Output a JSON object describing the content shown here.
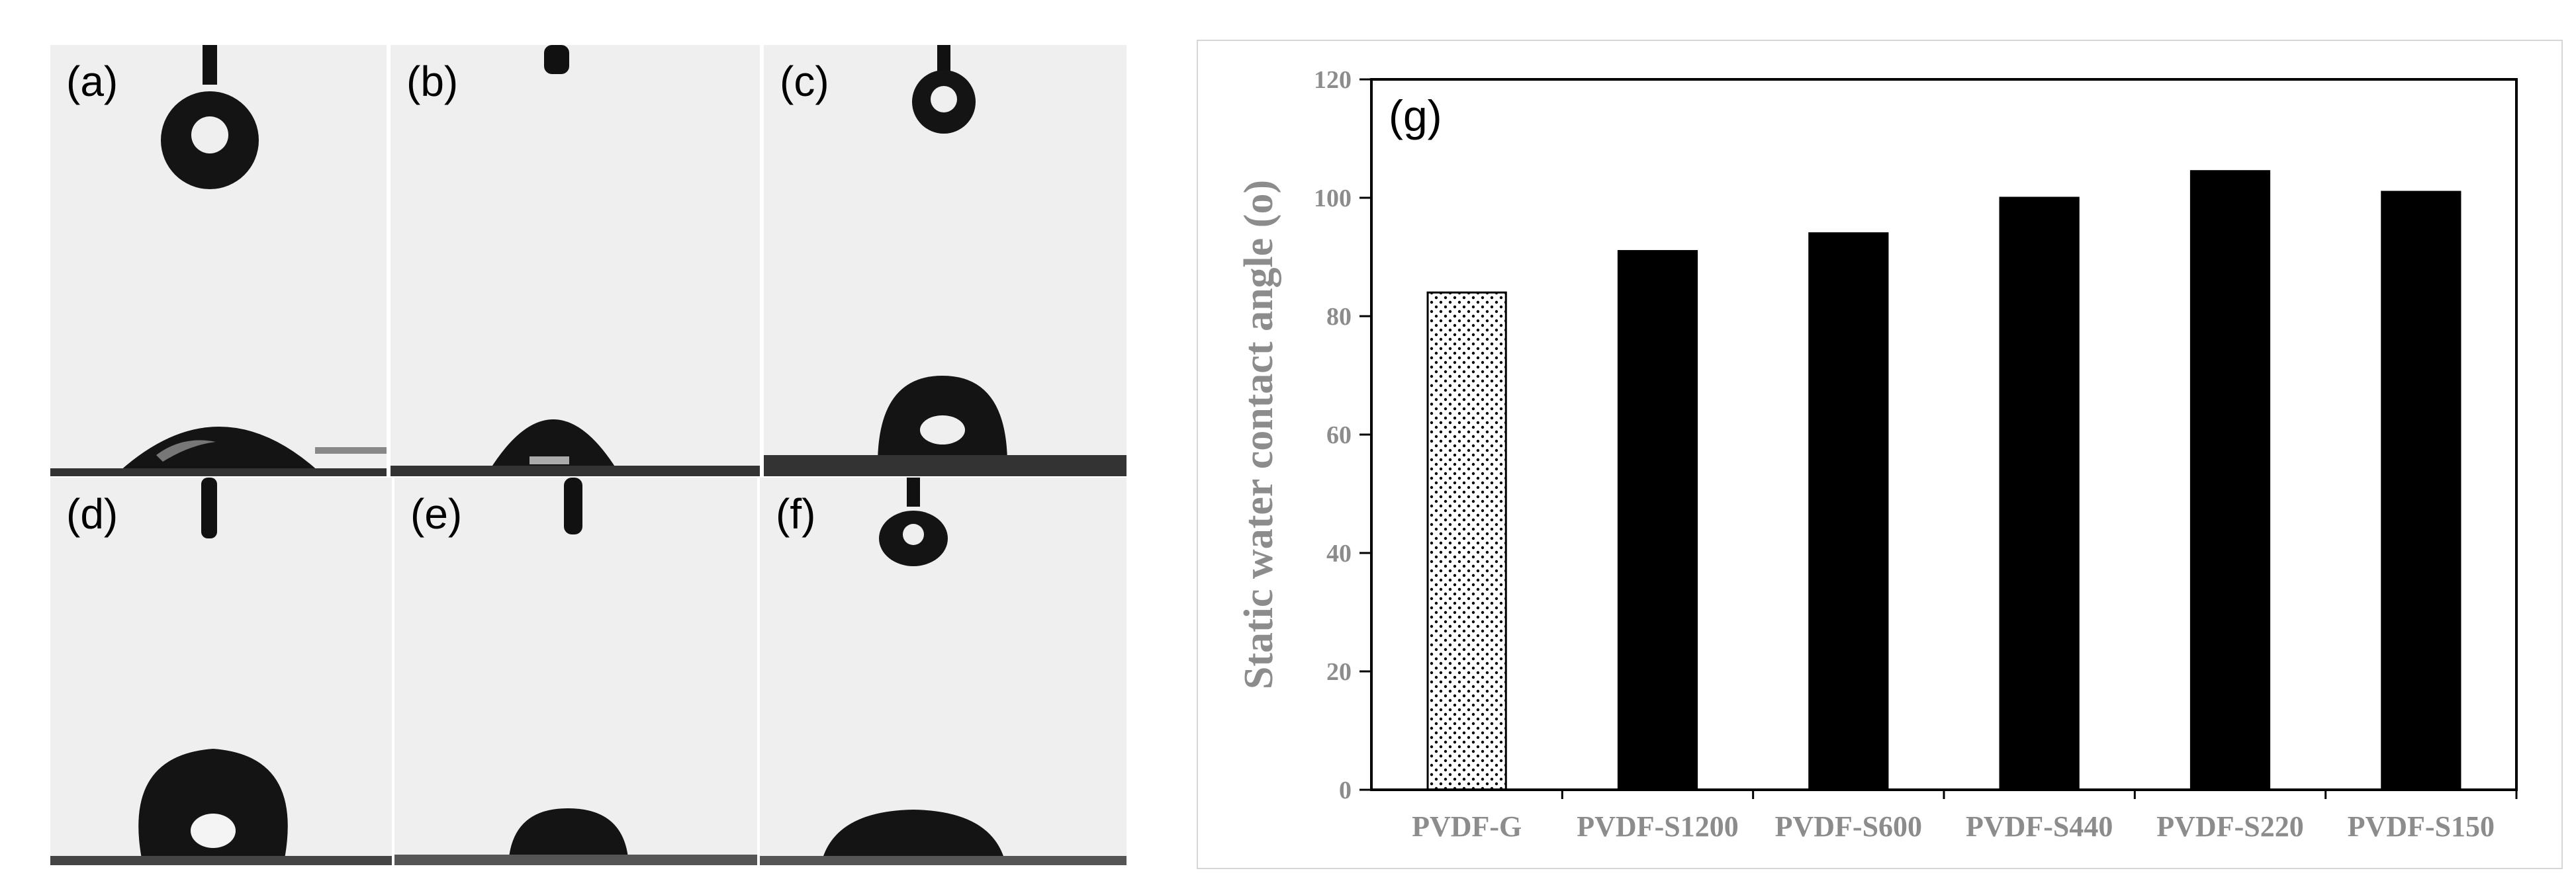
{
  "photo_panels": [
    {
      "label": "(a)"
    },
    {
      "label": "(b)"
    },
    {
      "label": "(c)"
    },
    {
      "label": "(d)"
    },
    {
      "label": "(e)"
    },
    {
      "label": "(f)"
    }
  ],
  "chart_data": {
    "type": "bar",
    "panel_label": "(g)",
    "categories": [
      "PVDF-G",
      "PVDF-S1200",
      "PVDF-S600",
      "PVDF-S440",
      "PVDF-S220",
      "PVDF-S150"
    ],
    "values": [
      84,
      91,
      94,
      100,
      104.5,
      101
    ],
    "bar_fills": [
      "dotted",
      "solid",
      "solid",
      "solid",
      "solid",
      "solid"
    ],
    "xlabel": "",
    "ylabel": "Static water contact angle (o)",
    "ylim": [
      0,
      120
    ],
    "yticks": [
      0,
      20,
      40,
      60,
      80,
      100,
      120
    ],
    "grid": false,
    "colors": {
      "bar": "#000000",
      "axis": "#000000",
      "text": "#8c8c8c"
    }
  }
}
